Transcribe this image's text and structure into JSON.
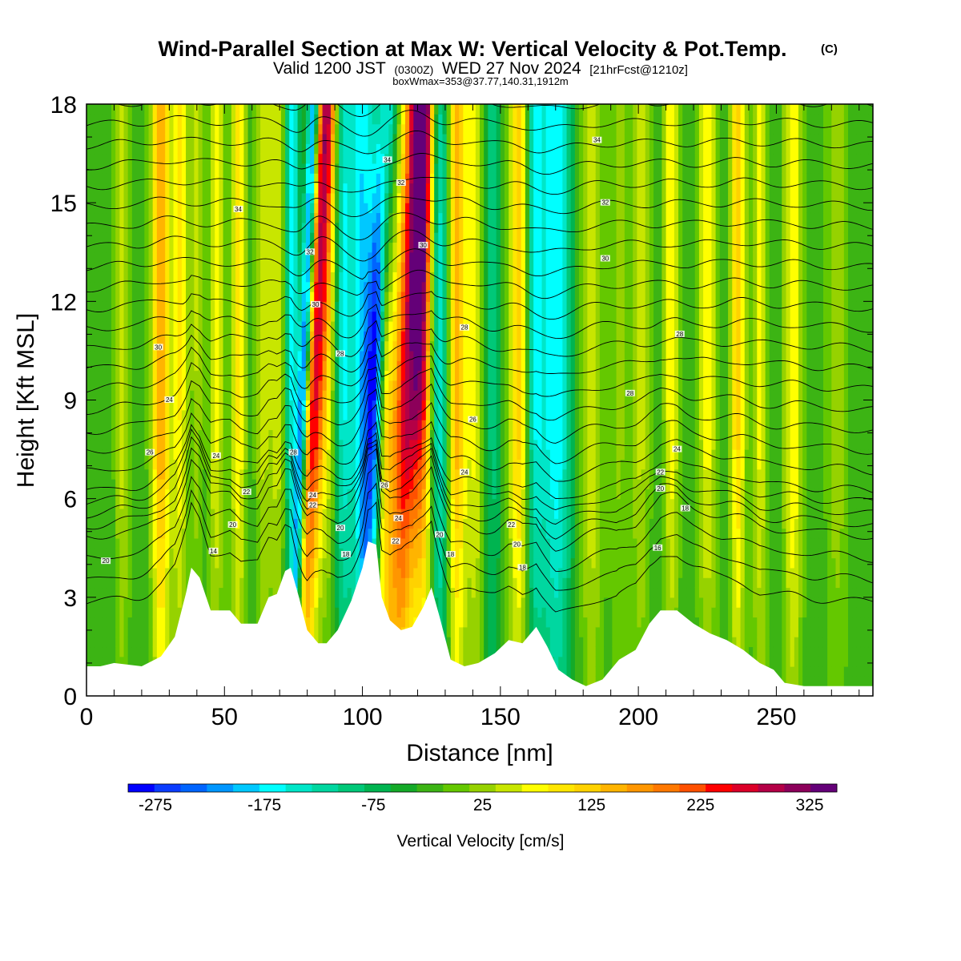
{
  "chart_data": {
    "type": "heatmap",
    "title": "Wind-Parallel Section at Max W: Vertical Velocity & Pot.Temp.",
    "title_mark": "(C)",
    "subtitle_main": "Valid 1200 JST",
    "subtitle_utc": "(0300Z)",
    "subtitle_date": "WED 27 Nov 2024",
    "subtitle_run": "[21hrFcst@1210z]",
    "subtitle2": "boxWmax=353@37.77,140.31,1912m",
    "xlabel": "Distance [nm]",
    "ylabel": "Height [Kft MSL]",
    "xlim": [
      0,
      285
    ],
    "ylim": [
      0,
      18
    ],
    "x_ticks": [
      0,
      50,
      100,
      150,
      200,
      250
    ],
    "x_tick_labels": [
      "0",
      "50",
      "100",
      "150",
      "200",
      "250"
    ],
    "y_ticks": [
      0,
      3,
      6,
      9,
      12,
      15,
      18
    ],
    "y_tick_labels": [
      "0",
      "3",
      "6",
      "9",
      "12",
      "15",
      "18"
    ],
    "colorbar": {
      "title": "Vertical Velocity [cm/s]",
      "min": -300,
      "max": 350,
      "step": 25,
      "labels": [
        "-275",
        "-175",
        "-75",
        "25",
        "125",
        "225",
        "325"
      ],
      "label_values": [
        -275,
        -175,
        -75,
        25,
        125,
        225,
        325
      ],
      "colors": [
        "#0000ff",
        "#0a3cff",
        "#0064ff",
        "#0096ff",
        "#00c8ff",
        "#00ffff",
        "#00e6c8",
        "#00d7a0",
        "#00c878",
        "#00b450",
        "#14aa28",
        "#3cb414",
        "#64c800",
        "#96d200",
        "#c8e600",
        "#ffff00",
        "#ffe600",
        "#ffd200",
        "#ffb400",
        "#ff9600",
        "#ff7800",
        "#ff5000",
        "#ff0000",
        "#dc0028",
        "#b40046",
        "#8c005a",
        "#640078"
      ]
    },
    "terrain_kft": [
      [
        0,
        0.9
      ],
      [
        5,
        0.9
      ],
      [
        10,
        1.0
      ],
      [
        20,
        0.9
      ],
      [
        27,
        1.2
      ],
      [
        32,
        1.8
      ],
      [
        36,
        3.1
      ],
      [
        38,
        3.9
      ],
      [
        41,
        3.6
      ],
      [
        45,
        2.6
      ],
      [
        52,
        2.6
      ],
      [
        56,
        2.2
      ],
      [
        62,
        2.2
      ],
      [
        66,
        3.0
      ],
      [
        69,
        3.1
      ],
      [
        72,
        3.8
      ],
      [
        74,
        3.9
      ],
      [
        77,
        3.0
      ],
      [
        80,
        2.0
      ],
      [
        84,
        1.6
      ],
      [
        87,
        1.6
      ],
      [
        91,
        2.0
      ],
      [
        96,
        2.9
      ],
      [
        100,
        3.9
      ],
      [
        102,
        4.7
      ],
      [
        105,
        4.6
      ],
      [
        107,
        3.0
      ],
      [
        110,
        2.3
      ],
      [
        114,
        2.0
      ],
      [
        118,
        2.1
      ],
      [
        122,
        2.7
      ],
      [
        125,
        3.3
      ],
      [
        128,
        2.4
      ],
      [
        132,
        1.1
      ],
      [
        137,
        0.9
      ],
      [
        142,
        1.0
      ],
      [
        148,
        1.3
      ],
      [
        153,
        1.7
      ],
      [
        158,
        1.6
      ],
      [
        163,
        2.1
      ],
      [
        167,
        1.5
      ],
      [
        171,
        0.8
      ],
      [
        176,
        0.5
      ],
      [
        181,
        0.3
      ],
      [
        187,
        0.5
      ],
      [
        193,
        1.1
      ],
      [
        199,
        1.4
      ],
      [
        204,
        2.2
      ],
      [
        208,
        2.6
      ],
      [
        214,
        2.6
      ],
      [
        220,
        2.2
      ],
      [
        226,
        1.9
      ],
      [
        232,
        1.7
      ],
      [
        238,
        1.4
      ],
      [
        244,
        1.0
      ],
      [
        249,
        0.8
      ],
      [
        253,
        0.4
      ],
      [
        260,
        0.3
      ],
      [
        270,
        0.3
      ],
      [
        285,
        0.3
      ]
    ],
    "w_bands": [
      {
        "x": 13,
        "w": 2,
        "v": 80
      },
      {
        "x": 27,
        "w": 2.5,
        "v": 190
      },
      {
        "x": 34,
        "w": 2,
        "v": 120
      },
      {
        "x": 40,
        "w": 1.5,
        "v": 70
      },
      {
        "x": 47,
        "w": 2,
        "v": 110
      },
      {
        "x": 55,
        "w": 2,
        "v": 130
      },
      {
        "x": 64,
        "w": 2,
        "v": 80
      },
      {
        "x": 70,
        "w": 2.5,
        "v": 110
      },
      {
        "x": 74,
        "w": 2,
        "v": -170
      },
      {
        "x": 78,
        "w": 1.5,
        "v": -290
      },
      {
        "x": 82,
        "w": 3,
        "v": 300
      },
      {
        "x": 88,
        "w": 2.5,
        "v": 70
      },
      {
        "x": 93,
        "w": 2.5,
        "v": -130
      },
      {
        "x": 100,
        "w": 3,
        "v": -150
      },
      {
        "x": 104,
        "w": 2.5,
        "v": -270
      },
      {
        "x": 108,
        "w": 2,
        "v": 150
      },
      {
        "x": 116,
        "w": 4,
        "v": 330
      },
      {
        "x": 122,
        "w": 2.5,
        "v": 190
      },
      {
        "x": 128,
        "w": 2.5,
        "v": -150
      },
      {
        "x": 134,
        "w": 2.5,
        "v": 180
      },
      {
        "x": 141,
        "w": 2.5,
        "v": 100
      },
      {
        "x": 147,
        "w": 2.5,
        "v": -70
      },
      {
        "x": 157,
        "w": 3,
        "v": 170
      },
      {
        "x": 162,
        "w": 2.5,
        "v": -140
      },
      {
        "x": 170,
        "w": 4,
        "v": -150
      },
      {
        "x": 183,
        "w": 3,
        "v": 90
      },
      {
        "x": 193,
        "w": 2.5,
        "v": 50
      },
      {
        "x": 201,
        "w": 2.5,
        "v": 80
      },
      {
        "x": 212,
        "w": 2,
        "v": 120
      },
      {
        "x": 225,
        "w": 2.5,
        "v": 110
      },
      {
        "x": 236,
        "w": 2,
        "v": 150
      },
      {
        "x": 244,
        "w": 2,
        "v": 100
      },
      {
        "x": 256,
        "w": 2.5,
        "v": 120
      },
      {
        "x": 272,
        "w": 3,
        "v": 60
      }
    ],
    "theta_levels": [
      14,
      16,
      18,
      20,
      21,
      22,
      23,
      24,
      25,
      26,
      27,
      28,
      29,
      30,
      31,
      32,
      33,
      34,
      35,
      36,
      37,
      38,
      39,
      40,
      41,
      42,
      43
    ],
    "contour_labels": [
      {
        "x": 7,
        "y": 4.1,
        "text": "20"
      },
      {
        "x": 23,
        "y": 7.4,
        "text": "26"
      },
      {
        "x": 30,
        "y": 9.0,
        "text": "24"
      },
      {
        "x": 26,
        "y": 10.6,
        "text": "30"
      },
      {
        "x": 46,
        "y": 4.4,
        "text": "14"
      },
      {
        "x": 53,
        "y": 5.2,
        "text": "20"
      },
      {
        "x": 58,
        "y": 6.2,
        "text": "22"
      },
      {
        "x": 47,
        "y": 7.3,
        "text": "24"
      },
      {
        "x": 55,
        "y": 14.8,
        "text": "34"
      },
      {
        "x": 75,
        "y": 7.4,
        "text": "28"
      },
      {
        "x": 81,
        "y": 13.5,
        "text": "32"
      },
      {
        "x": 83,
        "y": 11.9,
        "text": "30"
      },
      {
        "x": 82,
        "y": 6.1,
        "text": "24"
      },
      {
        "x": 82,
        "y": 5.8,
        "text": "22"
      },
      {
        "x": 92,
        "y": 5.1,
        "text": "20"
      },
      {
        "x": 94,
        "y": 4.3,
        "text": "18"
      },
      {
        "x": 92,
        "y": 10.4,
        "text": "28"
      },
      {
        "x": 108,
        "y": 6.4,
        "text": "26"
      },
      {
        "x": 109,
        "y": 16.3,
        "text": "34"
      },
      {
        "x": 114,
        "y": 15.6,
        "text": "32"
      },
      {
        "x": 113,
        "y": 5.4,
        "text": "24"
      },
      {
        "x": 112,
        "y": 4.7,
        "text": "22"
      },
      {
        "x": 122,
        "y": 13.7,
        "text": "30"
      },
      {
        "x": 128,
        "y": 4.9,
        "text": "20"
      },
      {
        "x": 132,
        "y": 4.3,
        "text": "18"
      },
      {
        "x": 137,
        "y": 6.8,
        "text": "24"
      },
      {
        "x": 140,
        "y": 8.4,
        "text": "26"
      },
      {
        "x": 137,
        "y": 11.2,
        "text": "28"
      },
      {
        "x": 154,
        "y": 5.2,
        "text": "22"
      },
      {
        "x": 156,
        "y": 4.6,
        "text": "20"
      },
      {
        "x": 158,
        "y": 3.9,
        "text": "18"
      },
      {
        "x": 185,
        "y": 16.9,
        "text": "34"
      },
      {
        "x": 188,
        "y": 15.0,
        "text": "32"
      },
      {
        "x": 188,
        "y": 13.3,
        "text": "30"
      },
      {
        "x": 197,
        "y": 9.2,
        "text": "28"
      },
      {
        "x": 215,
        "y": 11.0,
        "text": "28"
      },
      {
        "x": 214,
        "y": 7.5,
        "text": "24"
      },
      {
        "x": 208,
        "y": 6.8,
        "text": "22"
      },
      {
        "x": 208,
        "y": 6.3,
        "text": "20"
      },
      {
        "x": 217,
        "y": 5.7,
        "text": "18"
      },
      {
        "x": 207,
        "y": 4.5,
        "text": "16"
      }
    ]
  }
}
